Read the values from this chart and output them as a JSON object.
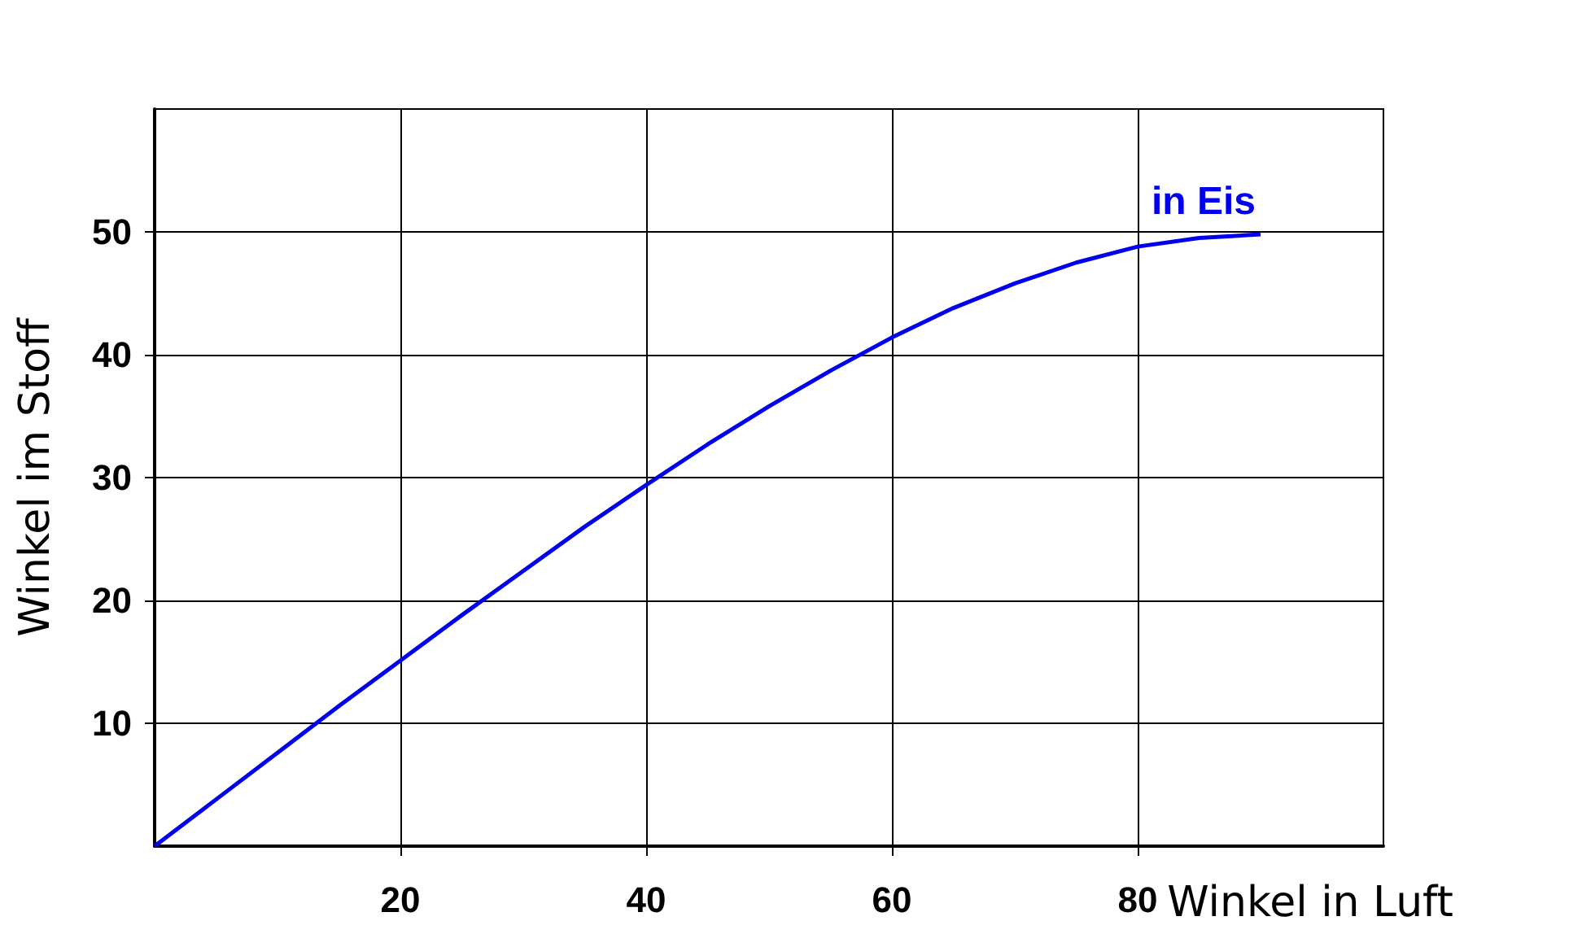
{
  "chart_data": {
    "type": "line",
    "xlabel": "Winkel in Luft",
    "ylabel": "Winkel im Stoff",
    "x": [
      0,
      5,
      10,
      15,
      20,
      25,
      30,
      35,
      40,
      45,
      50,
      55,
      60,
      65,
      70,
      75,
      80,
      85,
      90
    ],
    "series": [
      {
        "name": "in Eis",
        "color": "#0000ee",
        "values": [
          0,
          3.8,
          7.6,
          11.4,
          15.1,
          18.8,
          22.4,
          26.0,
          29.4,
          32.7,
          35.8,
          38.7,
          41.4,
          43.8,
          45.8,
          47.5,
          48.8,
          49.5,
          49.8
        ]
      }
    ],
    "xlim": [
      0,
      100
    ],
    "ylim": [
      0,
      60
    ],
    "xticks": [
      20,
      40,
      60,
      80
    ],
    "yticks": [
      10,
      20,
      30,
      40,
      50
    ],
    "grid": true,
    "legend": false,
    "marker": "none",
    "line_style": "solid"
  }
}
